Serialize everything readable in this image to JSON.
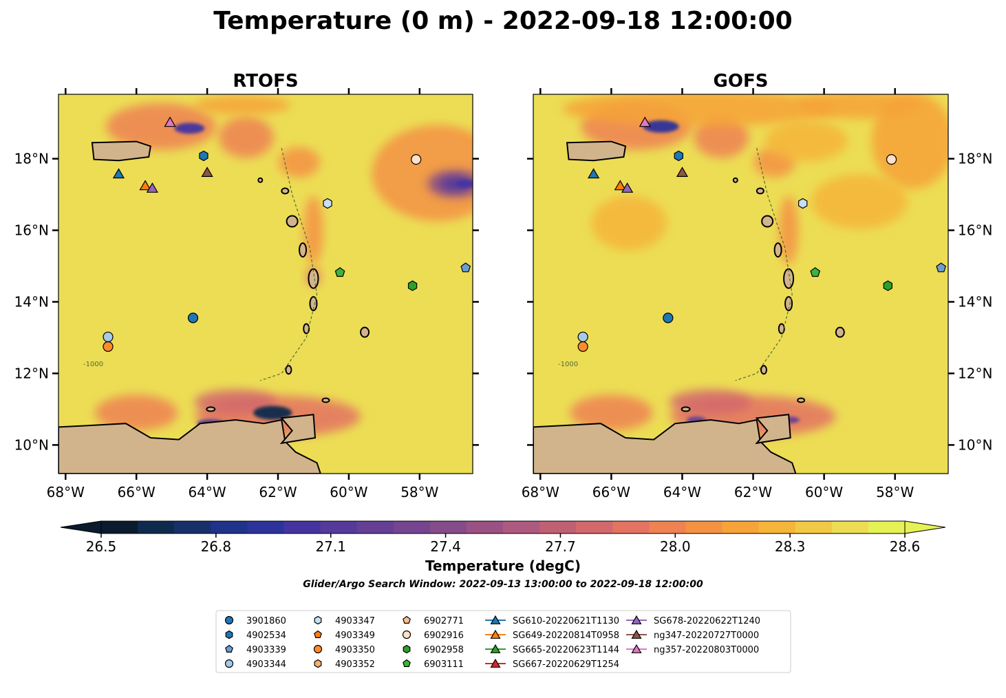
{
  "title": "Temperature (0 m) - 2022-09-18 12:00:00",
  "search_window": "Glider/Argo Search Window: 2022-09-13 13:00:00 to 2022-09-18 12:00:00",
  "chart_data": [
    {
      "type": "map",
      "title": "RTOFS",
      "xlim": [
        -68.2,
        -56.5
      ],
      "ylim": [
        9.2,
        19.8
      ],
      "x_ticks": [
        -68,
        -66,
        -64,
        -62,
        -60,
        -58
      ],
      "x_tick_labels": [
        "68°W",
        "66°W",
        "64°W",
        "62°W",
        "60°W",
        "58°W"
      ],
      "y_ticks": [
        10,
        12,
        14,
        16,
        18
      ],
      "y_tick_labels": [
        "10°N",
        "12°N",
        "14°N",
        "16°N",
        "18°N"
      ],
      "y_label_side": "left",
      "bathymetry_contour_label": "-1000"
    },
    {
      "type": "map",
      "title": "GOFS",
      "xlim": [
        -68.2,
        -56.5
      ],
      "ylim": [
        9.2,
        19.8
      ],
      "x_ticks": [
        -68,
        -66,
        -64,
        -62,
        -60,
        -58
      ],
      "x_tick_labels": [
        "68°W",
        "66°W",
        "64°W",
        "62°W",
        "60°W",
        "58°W"
      ],
      "y_ticks": [
        10,
        12,
        14,
        16,
        18
      ],
      "y_tick_labels": [
        "10°N",
        "12°N",
        "14°N",
        "16°N",
        "18°N"
      ],
      "y_label_side": "right",
      "bathymetry_contour_label": "-1000"
    }
  ],
  "colorbar": {
    "label": "Temperature (degC)",
    "min": 26.5,
    "max": 28.6,
    "ticks": [
      26.5,
      26.8,
      27.1,
      27.4,
      27.7,
      28.0,
      28.3,
      28.6
    ],
    "tick_labels": [
      "26.5",
      "26.8",
      "27.1",
      "27.4",
      "27.7",
      "28.0",
      "28.3",
      "28.6"
    ],
    "colors": [
      "#0b1b2e",
      "#102a4d",
      "#18306a",
      "#21328a",
      "#2d339a",
      "#4534a0",
      "#553a9a",
      "#653f95",
      "#754590",
      "#864b89",
      "#9a5284",
      "#ad5a7e",
      "#c06075",
      "#d3686d",
      "#e37362",
      "#ee8252",
      "#f49244",
      "#f6a339",
      "#f5b53a",
      "#f1c946",
      "#ecdd55",
      "#e6f155"
    ],
    "extend": "both"
  },
  "observations": [
    {
      "label": "3901860",
      "kind": "argo",
      "marker": "circle",
      "color": "#1f77b4",
      "lon": -64.4,
      "lat": 13.55
    },
    {
      "label": "4902534",
      "kind": "argo",
      "marker": "hexagon",
      "color": "#1f77b4",
      "lon": -64.1,
      "lat": 18.08
    },
    {
      "label": "4903339",
      "kind": "argo",
      "marker": "pentagon",
      "color": "#6a9ed2",
      "lon": -56.7,
      "lat": 14.95
    },
    {
      "label": "4903344",
      "kind": "argo",
      "marker": "circle",
      "color": "#a6cbe8",
      "lon": -66.8,
      "lat": 13.02
    },
    {
      "label": "4903347",
      "kind": "argo",
      "marker": "hexagon",
      "color": "#c6e0f5",
      "lon": -60.6,
      "lat": 16.75
    },
    {
      "label": "4903349",
      "kind": "argo",
      "marker": "pentagon",
      "color": "#ff7f0e",
      "lon": -66.8,
      "lat": 12.75
    },
    {
      "label": "4903350",
      "kind": "argo",
      "marker": "circle",
      "color": "#ff8c2a",
      "lon": -66.8,
      "lat": 12.75
    },
    {
      "label": "4903352",
      "kind": "argo",
      "marker": "hexagon",
      "color": "#fdae6b",
      "lon": -58.1,
      "lat": 17.98
    },
    {
      "label": "6902771",
      "kind": "argo",
      "marker": "pentagon",
      "color": "#fdbf8a",
      "lon": -58.1,
      "lat": 17.98
    },
    {
      "label": "6902916",
      "kind": "argo",
      "marker": "circle",
      "color": "#fee0c8",
      "lon": -58.1,
      "lat": 17.98
    },
    {
      "label": "6902958",
      "kind": "argo",
      "marker": "hexagon",
      "color": "#2ca02c",
      "lon": -58.2,
      "lat": 14.45
    },
    {
      "label": "6903111",
      "kind": "argo",
      "marker": "pentagon",
      "color": "#3cb43c",
      "lon": -60.25,
      "lat": 14.82
    },
    {
      "label": "SG610-20220621T1130",
      "kind": "glider",
      "marker": "triangle",
      "color": "#1f77b4",
      "lon": -66.5,
      "lat": 17.58
    },
    {
      "label": "SG649-20220814T0958",
      "kind": "glider",
      "marker": "triangle",
      "color": "#ff7f0e",
      "lon": -65.75,
      "lat": 17.25
    },
    {
      "label": "SG665-20220623T1144",
      "kind": "glider",
      "marker": "triangle",
      "color": "#2ca02c",
      "lon": null,
      "lat": null
    },
    {
      "label": "SG667-20220629T1254",
      "kind": "glider",
      "marker": "triangle",
      "color": "#d62728",
      "lon": null,
      "lat": null
    },
    {
      "label": "SG678-20220622T1240",
      "kind": "glider",
      "marker": "triangle",
      "color": "#9467bd",
      "lon": -65.55,
      "lat": 17.18
    },
    {
      "label": "ng347-20220727T0000",
      "kind": "glider",
      "marker": "triangle",
      "color": "#8c564b",
      "lon": -64.0,
      "lat": 17.62
    },
    {
      "label": "ng357-20220803T0000",
      "kind": "glider",
      "marker": "triangle",
      "color": "#e377c2",
      "lon": -65.05,
      "lat": 19.02
    }
  ]
}
